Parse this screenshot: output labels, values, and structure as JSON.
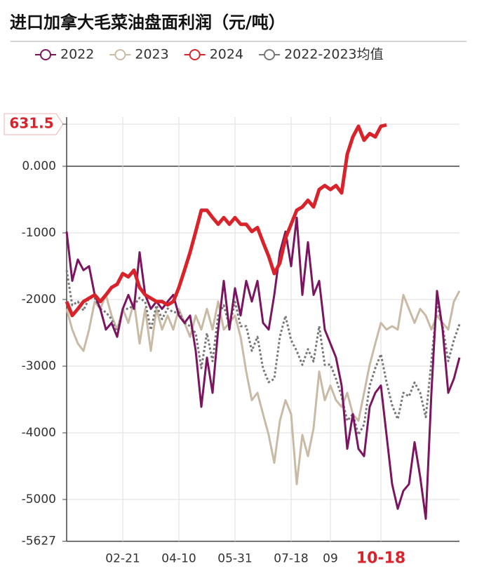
{
  "chart_data": {
    "type": "line",
    "title": "进口加拿大毛菜油盘面利润（元/吨）",
    "categories": [
      null,
      null,
      null,
      null,
      null,
      null,
      null,
      null,
      null,
      null,
      "02-21",
      null,
      null,
      null,
      null,
      null,
      null,
      null,
      null,
      null,
      "04-10",
      null,
      null,
      null,
      null,
      null,
      null,
      null,
      null,
      null,
      "05-31",
      null,
      null,
      null,
      null,
      null,
      null,
      null,
      null,
      null,
      "07-18",
      null,
      null,
      null,
      null,
      null,
      null,
      "09",
      null,
      null,
      null,
      null,
      null,
      null,
      null,
      null,
      "10-18",
      null,
      null,
      null,
      null,
      null,
      null,
      null,
      null,
      null,
      null,
      null,
      null,
      null,
      null
    ],
    "series": [
      {
        "name": "2022",
        "color": "#7b1560",
        "dash": false,
        "width": 3,
        "values": [
          -980,
          -1720,
          -1400,
          -1560,
          -1500,
          -1930,
          -2140,
          -2450,
          -2350,
          -2560,
          -2140,
          -1930,
          -2140,
          -1290,
          -1930,
          -2140,
          -2030,
          -2140,
          -2030,
          -1930,
          -2240,
          -2350,
          -2240,
          -2770,
          -3610,
          -2870,
          -3400,
          -2450,
          -1720,
          -2450,
          -1830,
          -2240,
          -1720,
          -2030,
          -1720,
          -2350,
          -2450,
          -1930,
          -1290,
          -980,
          -1500,
          -770,
          -1930,
          -1140,
          -1930,
          -1720,
          -2450,
          -2660,
          -2870,
          -3290,
          -4240,
          -3720,
          -4240,
          -4350,
          -3610,
          -3400,
          -3290,
          -4030,
          -4770,
          -5140,
          -4870,
          -4770,
          -4140,
          -4660,
          -5290,
          -3400,
          -1870,
          -2450,
          -3400,
          -3190,
          -2870
        ]
      },
      {
        "name": "2023",
        "color": "#c9baa5",
        "dash": false,
        "width": 3,
        "values": [
          -2140,
          -2450,
          -2660,
          -2770,
          -2450,
          -2030,
          -2140,
          -1930,
          -2240,
          -2450,
          -2140,
          -2350,
          -2030,
          -2660,
          -2140,
          -2770,
          -2140,
          -2450,
          -2240,
          -2450,
          -2140,
          -2350,
          -2560,
          -2240,
          -2450,
          -2140,
          -2450,
          -2030,
          -2450,
          -2350,
          -2240,
          -2560,
          -3080,
          -3510,
          -3400,
          -3720,
          -4030,
          -4450,
          -3820,
          -3510,
          -3720,
          -4770,
          -4030,
          -4350,
          -3930,
          -3080,
          -3510,
          -3290,
          -3510,
          -3610,
          -3400,
          -3720,
          -3820,
          -3400,
          -2980,
          -2660,
          -2350,
          -2450,
          -2400,
          -2450,
          -1930,
          -2140,
          -2350,
          -2140,
          -2240,
          -2450,
          -2240,
          -2350,
          -2450,
          -2030,
          -1870
        ]
      },
      {
        "name": "2024",
        "color": "#d9232b",
        "dash": false,
        "width": 5,
        "values": [
          -2030,
          -2240,
          -2140,
          -2030,
          -1980,
          -1930,
          -2030,
          -1930,
          -1820,
          -1770,
          -1610,
          -1660,
          -1560,
          -1820,
          -1930,
          -1980,
          -2030,
          -2030,
          -2080,
          -2030,
          -1820,
          -1560,
          -1290,
          -980,
          -660,
          -660,
          -770,
          -870,
          -770,
          -870,
          -770,
          -870,
          -870,
          -980,
          -920,
          -1140,
          -1350,
          -1610,
          -1450,
          -1080,
          -870,
          -660,
          -610,
          -510,
          -610,
          -350,
          -290,
          -350,
          -290,
          -400,
          180,
          440,
          600,
          390,
          490,
          440,
          600,
          620,
          null,
          null,
          null,
          null,
          null,
          null,
          null,
          null,
          null,
          null,
          null,
          null,
          null
        ]
      },
      {
        "name": "2022-2023均值",
        "color": "#777777",
        "dash": true,
        "width": 3,
        "values": [
          -1560,
          -2085,
          -2030,
          -2165,
          -1975,
          -1980,
          -2140,
          -2190,
          -2295,
          -2505,
          -2140,
          -2140,
          -2085,
          -1975,
          -2035,
          -2455,
          -2085,
          -2295,
          -2135,
          -2190,
          -2190,
          -2350,
          -2400,
          -2505,
          -3030,
          -2505,
          -2925,
          -2240,
          -2085,
          -2400,
          -2035,
          -2400,
          -2400,
          -2770,
          -2560,
          -3035,
          -3240,
          -3190,
          -2555,
          -2245,
          -2610,
          -2770,
          -2980,
          -2745,
          -2930,
          -2400,
          -2980,
          -2975,
          -3190,
          -3450,
          -3820,
          -3720,
          -4030,
          -3875,
          -3295,
          -3030,
          -2820,
          -3240,
          -3585,
          -3795,
          -3400,
          -3455,
          -3245,
          -3400,
          -3765,
          -2925,
          -2055,
          -2400,
          -2925,
          -2610,
          -2370
        ]
      }
    ],
    "ylim": [
      -5627,
      631.5
    ],
    "yticks": [
      631.5,
      {
        "value": 0,
        "label": "0.000"
      },
      -1000,
      -2000,
      -3000,
      -4000,
      -5000,
      -5627
    ],
    "grid": true,
    "legend": "top"
  }
}
